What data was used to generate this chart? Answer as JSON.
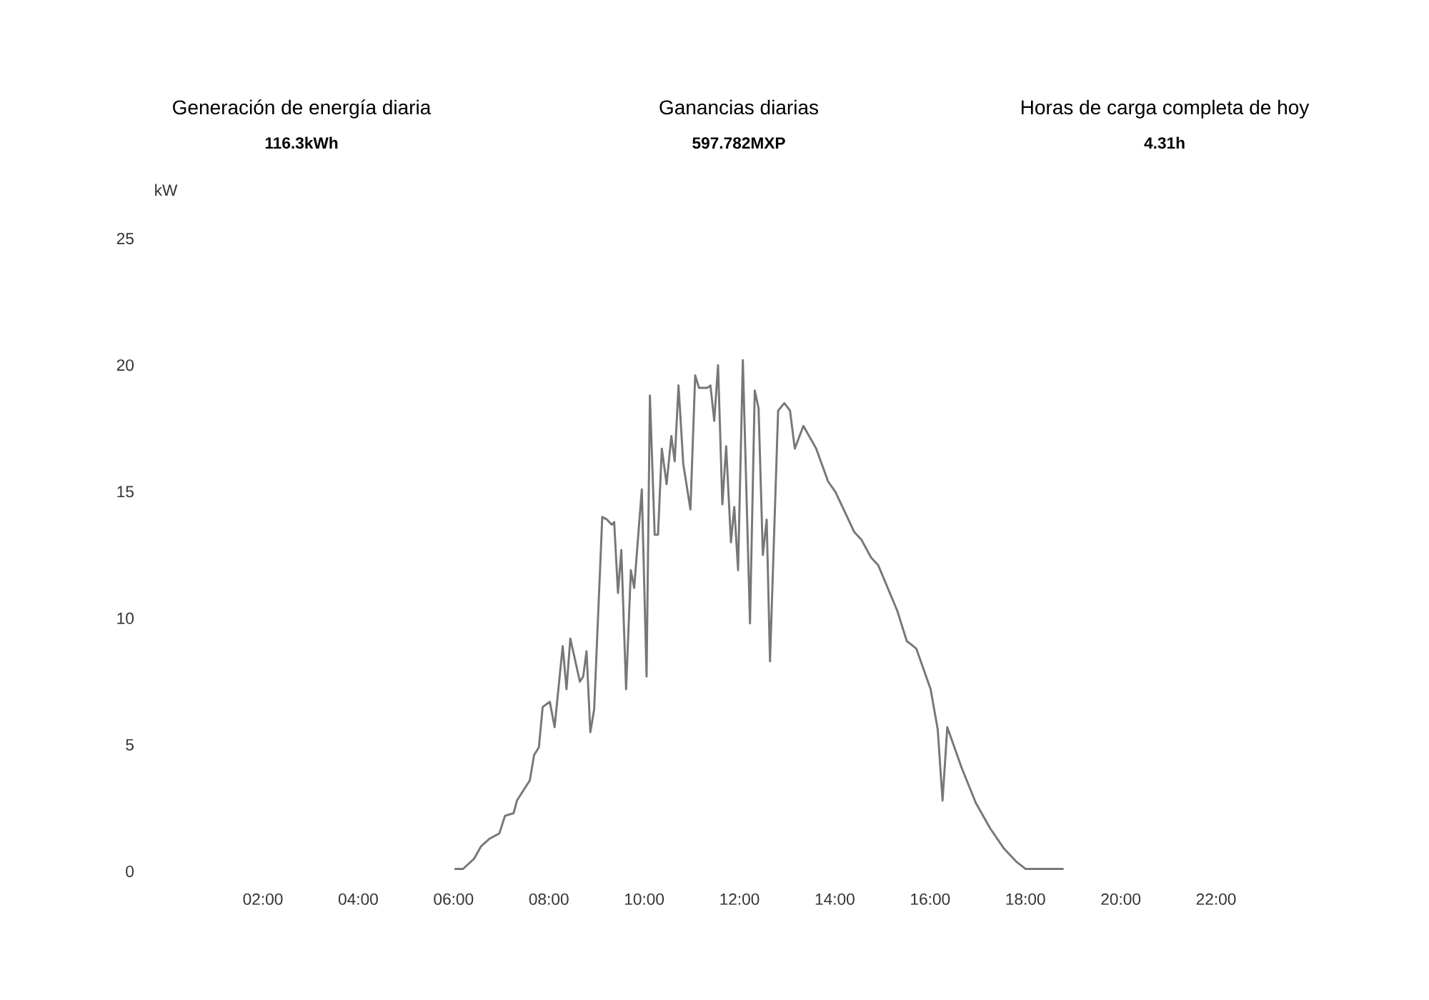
{
  "chart_data": {
    "type": "line",
    "ylabel": "kW",
    "annotations": [
      "Generación de energía diaria",
      "116.3kWh",
      "Ganancias diarias",
      "597.782MXP",
      "Horas de carga completa de hoy",
      "4.31h"
    ],
    "xlim": [
      2,
      22
    ],
    "ylim": [
      0,
      25
    ],
    "xticks": [
      {
        "value": 2,
        "label": "02:00"
      },
      {
        "value": 4,
        "label": "04:00"
      },
      {
        "value": 6,
        "label": "06:00"
      },
      {
        "value": 8,
        "label": "08:00"
      },
      {
        "value": 10,
        "label": "10:00"
      },
      {
        "value": 12,
        "label": "12:00"
      },
      {
        "value": 14,
        "label": "14:00"
      },
      {
        "value": 16,
        "label": "16:00"
      },
      {
        "value": 18,
        "label": "18:00"
      },
      {
        "value": 20,
        "label": "20:00"
      },
      {
        "value": 22,
        "label": "22:00"
      }
    ],
    "yticks": [
      0,
      5,
      10,
      15,
      20,
      25
    ],
    "marker": "none",
    "line_style": "solid",
    "series": [
      {
        "color": "#777777",
        "x": [
          6.02,
          6.2,
          6.43,
          6.58,
          6.76,
          6.96,
          7.08,
          7.26,
          7.33,
          7.6,
          7.69,
          7.79,
          7.87,
          8.02,
          8.12,
          8.29,
          8.37,
          8.45,
          8.65,
          8.72,
          8.79,
          8.87,
          8.95,
          9.12,
          9.22,
          9.32,
          9.37,
          9.45,
          9.52,
          9.62,
          9.72,
          9.79,
          9.95,
          10.05,
          10.12,
          10.22,
          10.29,
          10.37,
          10.47,
          10.57,
          10.64,
          10.72,
          10.82,
          10.97,
          11.07,
          11.15,
          11.32,
          11.39,
          11.47,
          11.55,
          11.64,
          11.72,
          11.82,
          11.89,
          11.97,
          12.07,
          12.22,
          12.32,
          12.4,
          12.49,
          12.57,
          12.64,
          12.81,
          12.94,
          13.06,
          13.16,
          13.34,
          13.61,
          13.86,
          14.01,
          14.21,
          14.41,
          14.56,
          14.76,
          14.91,
          15.11,
          15.31,
          15.51,
          15.71,
          15.86,
          16.01,
          16.16,
          16.26,
          16.36,
          16.66,
          16.96,
          17.26,
          17.55,
          17.8,
          18.0,
          18.8
        ],
        "values": [
          0.1,
          0.1,
          0.5,
          1.0,
          1.3,
          1.5,
          2.2,
          2.3,
          2.8,
          3.6,
          4.6,
          4.9,
          6.5,
          6.7,
          5.7,
          8.9,
          7.2,
          9.2,
          7.5,
          7.7,
          8.7,
          5.5,
          6.4,
          14.0,
          13.9,
          13.7,
          13.8,
          11.0,
          12.7,
          7.2,
          11.9,
          11.2,
          15.1,
          7.7,
          18.8,
          13.3,
          13.3,
          16.7,
          15.3,
          17.2,
          16.2,
          19.2,
          16.1,
          14.3,
          19.6,
          19.1,
          19.1,
          19.2,
          17.8,
          20.0,
          14.5,
          16.8,
          13.0,
          14.4,
          11.9,
          20.2,
          9.8,
          19.0,
          18.3,
          12.5,
          13.9,
          8.3,
          18.2,
          18.5,
          18.2,
          16.7,
          17.6,
          16.7,
          15.4,
          15.0,
          14.2,
          13.4,
          13.1,
          12.4,
          12.1,
          11.2,
          10.3,
          9.1,
          8.8,
          8.0,
          7.2,
          5.6,
          2.8,
          5.7,
          4.1,
          2.7,
          1.7,
          0.9,
          0.4,
          0.1,
          0.1
        ]
      }
    ]
  }
}
